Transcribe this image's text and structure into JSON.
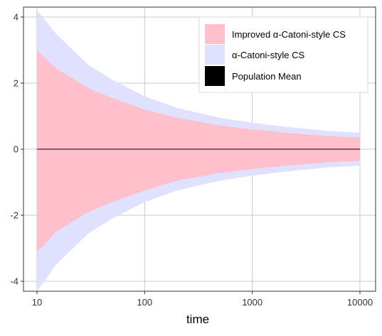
{
  "chart_data": {
    "type": "area",
    "title": "",
    "xlabel": "time",
    "ylabel": "",
    "x_scale": "log",
    "xlim": [
      10,
      10000
    ],
    "ylim": [
      -4.3,
      4.3
    ],
    "x_ticks": [
      10,
      100,
      1000,
      10000
    ],
    "x_tick_labels": [
      "10",
      "100",
      "1000",
      "10000"
    ],
    "y_ticks": [
      -4,
      -2,
      0,
      2,
      4
    ],
    "y_tick_labels": [
      "-4",
      "-2",
      "0",
      "2",
      "4"
    ],
    "grid": true,
    "legend_position": "top-right",
    "x": [
      10,
      12,
      15,
      20,
      30,
      50,
      100,
      200,
      500,
      1000,
      2000,
      5000,
      10000
    ],
    "series": [
      {
        "name": "Improved α-Catoni-style CS",
        "color": "#ffc0cb",
        "lower": [
          -3.1,
          -2.85,
          -2.5,
          -2.25,
          -1.9,
          -1.6,
          -1.25,
          -0.95,
          -0.72,
          -0.6,
          -0.5,
          -0.4,
          -0.35
        ],
        "upper": [
          3.0,
          2.75,
          2.45,
          2.2,
          1.85,
          1.55,
          1.2,
          0.95,
          0.72,
          0.6,
          0.5,
          0.4,
          0.35
        ]
      },
      {
        "name": "α-Catoni-style CS",
        "color": "#e0e0ff",
        "lower": [
          -4.3,
          -3.95,
          -3.5,
          -3.1,
          -2.55,
          -2.1,
          -1.6,
          -1.25,
          -0.95,
          -0.8,
          -0.68,
          -0.55,
          -0.5
        ],
        "upper": [
          4.2,
          3.9,
          3.5,
          3.1,
          2.55,
          2.1,
          1.6,
          1.25,
          0.95,
          0.8,
          0.68,
          0.55,
          0.5
        ]
      },
      {
        "name": "Population Mean",
        "color": "#000000",
        "values": [
          0,
          0,
          0,
          0,
          0,
          0,
          0,
          0,
          0,
          0,
          0,
          0,
          0
        ]
      }
    ]
  },
  "legend": {
    "items": [
      {
        "label": "Improved α-Catoni-style CS",
        "color": "#ffc0cb"
      },
      {
        "label": "α-Catoni-style CS",
        "color": "#e0e0ff"
      },
      {
        "label": "Population Mean",
        "color": "#000000"
      }
    ]
  },
  "colors": {
    "grid": "#c8c8c8",
    "panel_border": "#333333",
    "background": "#ffffff"
  }
}
